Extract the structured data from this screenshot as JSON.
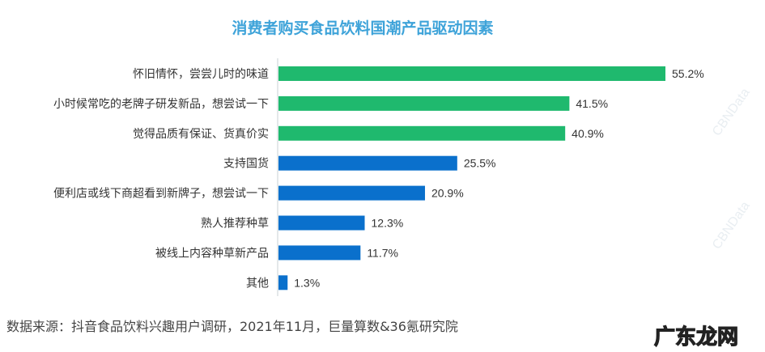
{
  "chart_data": {
    "type": "bar",
    "orientation": "horizontal",
    "title": "消费者购买食品饮料国潮产品驱动因素",
    "categories": [
      "怀旧情怀，尝尝儿时的味道",
      "小时候常吃的老牌子研发新品，想尝试一下",
      "觉得品质有保证、货真价实",
      "支持国货",
      "便利店或线下商超看到新牌子，想尝试一下",
      "熟人推荐种草",
      "被线上内容种草新产品",
      "其他"
    ],
    "values": [
      55.2,
      41.5,
      40.9,
      25.5,
      20.9,
      12.3,
      11.7,
      1.3
    ],
    "data_labels": [
      "55.2%",
      "41.5%",
      "40.9%",
      "25.5%",
      "20.9%",
      "12.3%",
      "11.7%",
      "1.3%"
    ],
    "bar_colors": [
      "#1fb96e",
      "#1fb96e",
      "#1fb96e",
      "#0a70cc",
      "#0a70cc",
      "#0a70cc",
      "#0a70cc",
      "#0a70cc"
    ],
    "unit": "%",
    "xlim": [
      0,
      60
    ],
    "grid": false,
    "legend": "none"
  },
  "source": "数据来源：抖音食品饮料兴趣用户调研，2021年11月，巨量算数&36氪研究院",
  "watermark": "CBNData",
  "site_mark": "广东龙网"
}
